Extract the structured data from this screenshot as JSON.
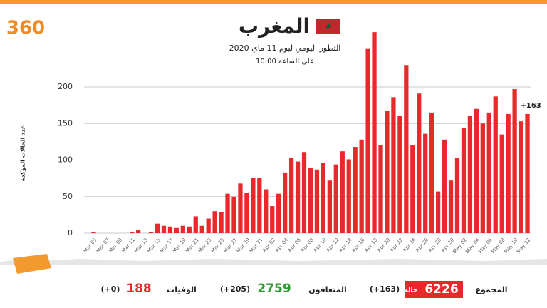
{
  "logo": "360",
  "chart_data": {
    "type": "bar",
    "title": "المغرب",
    "subtitle": "التطور اليومي ليوم 11 ماي 2020",
    "subtitle2": "على الساعة 10:00",
    "y_label": "عدد الحالات المؤكدة",
    "annotation": "+163",
    "color": "#e8282b",
    "categories": [
      null,
      "Mar 05",
      null,
      "Mar 07",
      null,
      "Mar 09",
      null,
      "Mar 11",
      null,
      "Mar 13",
      null,
      "Mar 15",
      null,
      "Mar 17",
      null,
      "Mar 19",
      null,
      "Mar 21",
      null,
      "Mar 23",
      null,
      "Mar 25",
      null,
      "Mar 27",
      null,
      "Mar 29",
      null,
      "Mar 31",
      null,
      "Apr 02",
      null,
      "Apr 04",
      null,
      "Apr 06",
      null,
      "Apr 08",
      null,
      "Apr 10",
      null,
      "Apr 12",
      null,
      "Apr 14",
      null,
      "Apr 16",
      null,
      "Apr 18",
      null,
      "Apr 20",
      null,
      "Apr 22",
      null,
      "Apr 24",
      null,
      "Apr 26",
      null,
      "Apr 28",
      null,
      "Apr 30",
      null,
      "May 02",
      null,
      "May 04",
      null,
      "May 06",
      null,
      "May 08",
      null,
      "May 10",
      null,
      "May 12"
    ],
    "values": [
      0,
      1,
      0,
      0,
      0,
      0,
      0,
      2,
      4,
      0,
      1,
      13,
      10,
      9,
      7,
      10,
      9,
      23,
      10,
      20,
      30,
      29,
      54,
      50,
      68,
      55,
      76,
      76,
      60,
      37,
      54,
      83,
      103,
      98,
      111,
      89,
      87,
      96,
      72,
      94,
      112,
      101,
      118,
      128,
      252,
      275,
      120,
      167,
      186,
      161,
      230,
      121,
      191,
      136,
      165,
      57,
      128,
      72,
      103,
      144,
      161,
      170,
      150,
      165,
      187,
      135,
      163,
      197,
      153,
      163
    ],
    "ylim": [
      0,
      280
    ],
    "yticks": [
      0,
      50,
      100,
      150,
      200
    ],
    "grid": true
  },
  "footer": {
    "total_label": "المجموع",
    "total": "6226",
    "total_unit": "حالة",
    "total_new": "(+163)",
    "recovered_label": "المتعافون",
    "recovered": "2759",
    "recovered_new": "(+205)",
    "deaths_label": "الوفيات",
    "deaths": "188",
    "deaths_new": "(+0)"
  }
}
